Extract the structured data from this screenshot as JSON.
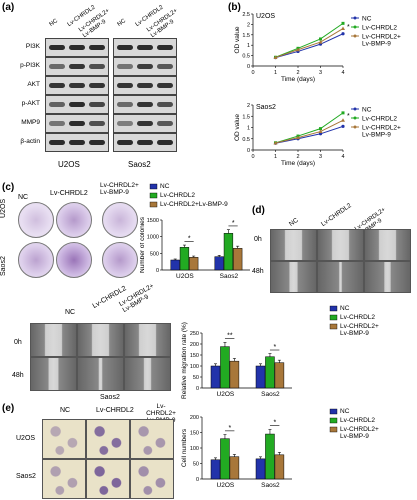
{
  "panels": {
    "a": "(a)",
    "b": "(b)",
    "c": "(c)",
    "d": "(d)",
    "e": "(e)"
  },
  "groups": {
    "nc": "NC",
    "chrdl2": "Lv-CHRDL2",
    "combo": "Lv-CHRDL2+\nLv-BMP-9",
    "combo_rot": "Lv-CHRDL2+\nLv-BMP-9",
    "combo_legend_c": "Lv-CHRDL2+Lv-BMP-9"
  },
  "cells": {
    "u2os": "U2OS",
    "saos2": "Saos2"
  },
  "western": {
    "proteins": [
      "PI3K",
      "p-PI3K",
      "AKT",
      "p-AKT",
      "MMP9",
      "β-actin"
    ],
    "bands": [
      [
        0.95,
        0.95,
        0.95,
        0.95,
        0.95,
        0.95
      ],
      [
        0.6,
        0.9,
        0.75,
        0.55,
        0.85,
        0.7
      ],
      [
        0.9,
        0.9,
        0.9,
        0.9,
        0.9,
        0.9
      ],
      [
        0.65,
        0.95,
        0.8,
        0.6,
        0.9,
        0.75
      ],
      [
        0.55,
        0.95,
        0.75,
        0.5,
        0.9,
        0.7
      ],
      [
        0.95,
        0.95,
        0.95,
        0.95,
        0.95,
        0.95
      ]
    ]
  },
  "wound_labels": {
    "t0": "0h",
    "t48": "48h"
  },
  "colors": {
    "nc": "#2233aa",
    "chrdl2": "#22aa22",
    "combo": "#a8773a",
    "blot": "#d8d8d8"
  },
  "chart_data": [
    {
      "type": "line",
      "title": "U2OS",
      "xlabel": "Time (days)",
      "ylabel": "OD value",
      "x": [
        0,
        1,
        2,
        3,
        4
      ],
      "xticks": [
        0,
        1,
        2,
        3,
        4
      ],
      "yticks": [
        0,
        0.5,
        1,
        1.5,
        2,
        2.5
      ],
      "ylim": [
        0,
        2.5
      ],
      "series": [
        {
          "name": "NC",
          "values": [
            null,
            0.4,
            0.7,
            1.05,
            1.55
          ]
        },
        {
          "name": "Lv-CHRDL2",
          "values": [
            null,
            0.42,
            0.85,
            1.3,
            2.05
          ]
        },
        {
          "name": "Lv-CHRDL2+\nLv-BMP-9",
          "values": [
            null,
            0.41,
            0.78,
            1.15,
            1.8
          ]
        }
      ],
      "annotations": [
        "*"
      ]
    },
    {
      "type": "line",
      "title": "Saos2",
      "xlabel": "Time (days)",
      "ylabel": "OD value",
      "x": [
        0,
        1,
        2,
        3,
        4
      ],
      "xticks": [
        0,
        1,
        2,
        3,
        4
      ],
      "yticks": [
        0,
        0.5,
        1,
        1.5,
        2
      ],
      "ylim": [
        0,
        2
      ],
      "series": [
        {
          "name": "NC",
          "values": [
            null,
            0.3,
            0.5,
            0.72,
            1.05
          ]
        },
        {
          "name": "Lv-CHRDL2",
          "values": [
            null,
            0.32,
            0.62,
            0.95,
            1.65
          ]
        },
        {
          "name": "Lv-CHRDL2+\nLv-BMP-9",
          "values": [
            null,
            0.31,
            0.55,
            0.82,
            1.32
          ]
        }
      ],
      "annotations": [
        "*"
      ]
    },
    {
      "type": "bar",
      "ylabel": "Number of colonies",
      "categories": [
        "U2OS",
        "Saos2"
      ],
      "yticks": [
        0,
        500,
        1000,
        1500
      ],
      "ylim": [
        0,
        1500
      ],
      "series": [
        {
          "name": "NC",
          "values": [
            300,
            400
          ]
        },
        {
          "name": "Lv-CHRDL2",
          "values": [
            680,
            1100
          ]
        },
        {
          "name": "Lv-CHRDL2+Lv-BMP-9",
          "values": [
            380,
            650
          ]
        }
      ],
      "annotations": [
        "*",
        "*"
      ]
    },
    {
      "type": "bar",
      "ylabel": "Relative migration rate (%)",
      "categories": [
        "U2OS",
        "Saos2"
      ],
      "yticks": [
        0,
        50,
        100,
        150,
        200,
        250
      ],
      "ylim": [
        0,
        250
      ],
      "series": [
        {
          "name": "NC",
          "values": [
            100,
            100
          ]
        },
        {
          "name": "Lv-CHRDL2",
          "values": [
            188,
            142
          ]
        },
        {
          "name": "Lv-CHRDL2+\nLv-BMP-9",
          "values": [
            122,
            115
          ]
        }
      ],
      "annotations": [
        "**",
        "*"
      ]
    },
    {
      "type": "bar",
      "ylabel": "Cell numbers",
      "categories": [
        "U2OS",
        "Saos2"
      ],
      "yticks": [
        0,
        50,
        100,
        150,
        200
      ],
      "ylim": [
        0,
        200
      ],
      "series": [
        {
          "name": "NC",
          "values": [
            62,
            65
          ]
        },
        {
          "name": "Lv-CHRDL2",
          "values": [
            130,
            145
          ]
        },
        {
          "name": "Lv-CHRDL2+\nLv-BMP-9",
          "values": [
            72,
            78
          ]
        }
      ],
      "annotations": [
        "*",
        "*"
      ]
    }
  ]
}
